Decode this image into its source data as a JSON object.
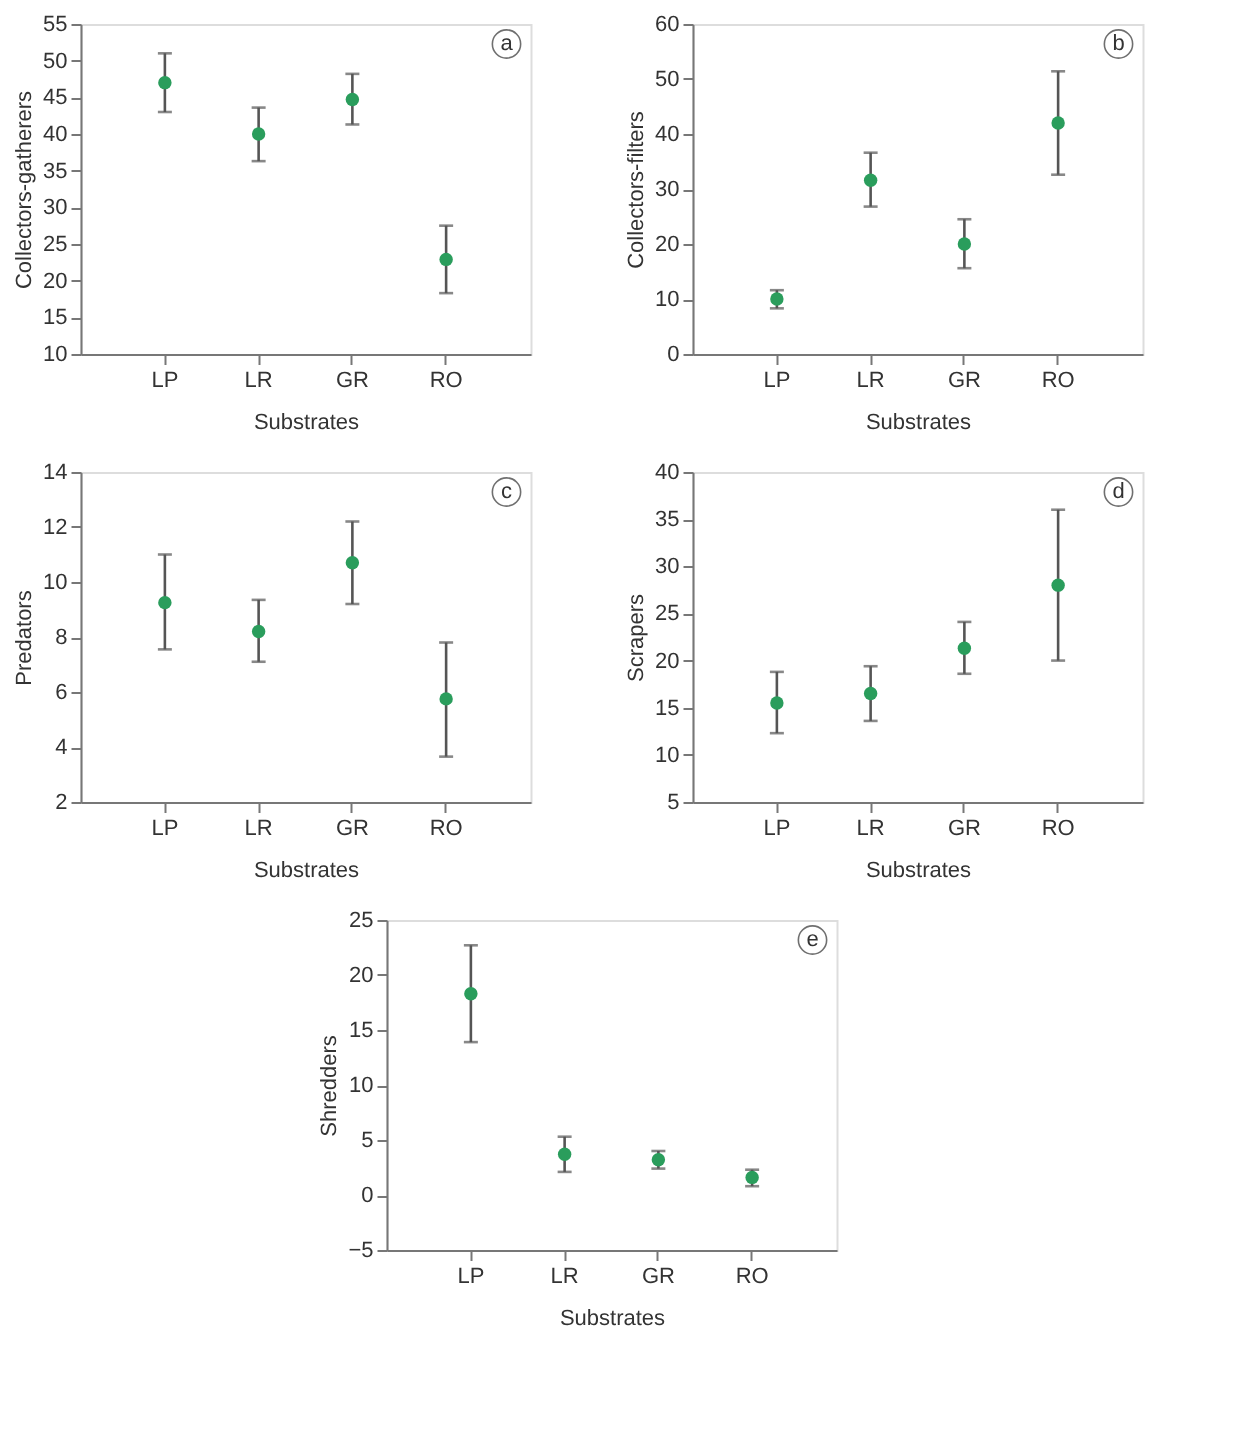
{
  "chart_data": [
    {
      "type": "scatter",
      "categories": [
        "LP",
        "LR",
        "GR",
        "RO"
      ],
      "xlabel": "Substrates",
      "ylabel": "Collectors-gatherers",
      "annotations": [
        "a"
      ],
      "ylim": [
        10,
        55
      ],
      "yticks": [
        10,
        15,
        20,
        25,
        30,
        35,
        40,
        45,
        50,
        55
      ],
      "grid": false,
      "marker": "circle",
      "series": [
        {
          "color": "#2a9d5c",
          "values": [
            47,
            40,
            44.7,
            22.9
          ],
          "errors": [
            [
              43,
              51
            ],
            [
              36.3,
              43.6
            ],
            [
              41.3,
              48.2
            ],
            [
              18.3,
              27.5
            ]
          ]
        }
      ]
    },
    {
      "type": "scatter",
      "categories": [
        "LP",
        "LR",
        "GR",
        "RO"
      ],
      "xlabel": "Substrates",
      "ylabel": "Collectors-filters",
      "annotations": [
        "b"
      ],
      "ylim": [
        0,
        60
      ],
      "yticks": [
        0,
        10,
        20,
        30,
        40,
        50,
        60
      ],
      "grid": false,
      "marker": "circle",
      "series": [
        {
          "color": "#2a9d5c",
          "values": [
            10,
            31.6,
            20,
            42
          ],
          "errors": [
            [
              8.3,
              11.6
            ],
            [
              26.8,
              36.6
            ],
            [
              15.6,
              24.5
            ],
            [
              32.6,
              51.4
            ]
          ]
        }
      ]
    },
    {
      "type": "scatter",
      "categories": [
        "LP",
        "LR",
        "GR",
        "RO"
      ],
      "xlabel": "Substrates",
      "ylabel": "Predators",
      "annotations": [
        "c"
      ],
      "ylim": [
        2,
        14
      ],
      "yticks": [
        2,
        4,
        6,
        8,
        10,
        12,
        14
      ],
      "grid": false,
      "marker": "circle",
      "series": [
        {
          "color": "#2a9d5c",
          "values": [
            9.25,
            8.2,
            10.7,
            5.75
          ],
          "errors": [
            [
              7.55,
              11
            ],
            [
              7.1,
              9.35
            ],
            [
              9.2,
              12.2
            ],
            [
              3.65,
              7.8
            ]
          ]
        }
      ]
    },
    {
      "type": "scatter",
      "categories": [
        "LP",
        "LR",
        "GR",
        "RO"
      ],
      "xlabel": "Substrates",
      "ylabel": "Scrapers",
      "annotations": [
        "d"
      ],
      "ylim": [
        5,
        40
      ],
      "yticks": [
        5,
        10,
        15,
        20,
        25,
        30,
        35,
        40
      ],
      "grid": false,
      "marker": "circle",
      "series": [
        {
          "color": "#2a9d5c",
          "values": [
            15.5,
            16.5,
            21.3,
            28
          ],
          "errors": [
            [
              12.3,
              18.8
            ],
            [
              13.6,
              19.4
            ],
            [
              18.6,
              24.1
            ],
            [
              20,
              36
            ]
          ]
        }
      ]
    },
    {
      "type": "scatter",
      "categories": [
        "LP",
        "LR",
        "GR",
        "RO"
      ],
      "xlabel": "Substrates",
      "ylabel": "Shredders",
      "annotations": [
        "e"
      ],
      "ylim": [
        -5,
        25
      ],
      "yticks": [
        {
          "value": -5,
          "label": "−5"
        },
        0,
        5,
        10,
        15,
        20,
        25
      ],
      "grid": false,
      "marker": "circle",
      "series": [
        {
          "color": "#2a9d5c",
          "values": [
            18.3,
            3.7,
            3.2,
            1.6
          ],
          "errors": [
            [
              13.9,
              22.7
            ],
            [
              2.1,
              5.3
            ],
            [
              2.4,
              4
            ],
            [
              0.8,
              2.3
            ]
          ]
        }
      ]
    }
  ]
}
